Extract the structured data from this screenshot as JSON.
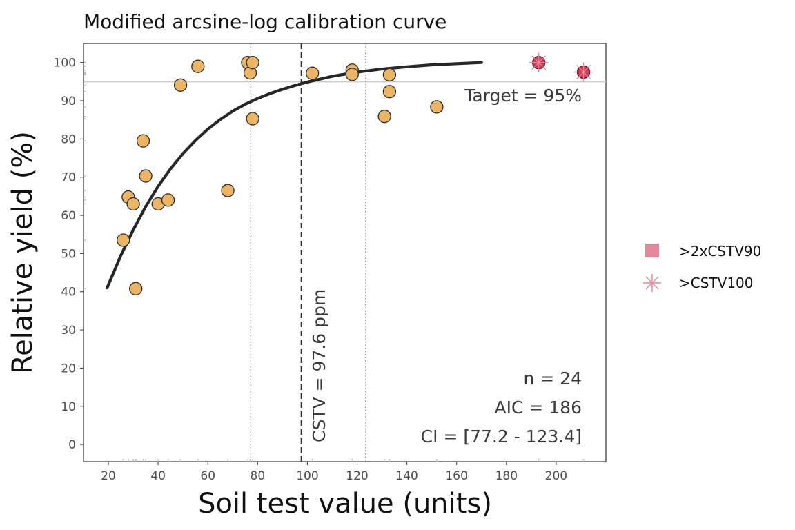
{
  "chart_data": {
    "type": "scatter",
    "title": "Modified arcsine-log calibration curve",
    "xlabel": "Soil test value (units)",
    "ylabel": "Relative yield (%)",
    "xlim": [
      10,
      220
    ],
    "ylim": [
      -4.5,
      105
    ],
    "x_ticks": [
      20,
      40,
      60,
      80,
      100,
      120,
      140,
      160,
      180,
      200
    ],
    "y_ticks": [
      0,
      10,
      20,
      30,
      40,
      50,
      60,
      70,
      80,
      90,
      100
    ],
    "grid": false,
    "target": {
      "value": 95,
      "label": "Target = 95%"
    },
    "cstv": {
      "value": 97.6,
      "label": "CSTV = 97.6 ppm"
    },
    "ci": {
      "lower": 77.2,
      "upper": 123.4
    },
    "stats": [
      "n = 24",
      "AIC = 186",
      "CI = [77.2 - 123.4]"
    ],
    "points": [
      {
        "x": 26,
        "y": 53.5
      },
      {
        "x": 28,
        "y": 64.8
      },
      {
        "x": 30,
        "y": 63
      },
      {
        "x": 31,
        "y": 40.8
      },
      {
        "x": 34,
        "y": 79.5
      },
      {
        "x": 35,
        "y": 70.3
      },
      {
        "x": 40,
        "y": 63
      },
      {
        "x": 44,
        "y": 64
      },
      {
        "x": 49,
        "y": 94.1
      },
      {
        "x": 56,
        "y": 99
      },
      {
        "x": 68,
        "y": 66.5
      },
      {
        "x": 76,
        "y": 100
      },
      {
        "x": 77,
        "y": 97.3
      },
      {
        "x": 78,
        "y": 100
      },
      {
        "x": 78,
        "y": 85.3
      },
      {
        "x": 102,
        "y": 97.2
      },
      {
        "x": 118,
        "y": 98
      },
      {
        "x": 118,
        "y": 96.9
      },
      {
        "x": 131,
        "y": 85.9
      },
      {
        "x": 133,
        "y": 92.4
      },
      {
        "x": 133,
        "y": 96.8
      },
      {
        "x": 152,
        "y": 88.4
      }
    ],
    "outliers": [
      {
        "x": 193,
        "y": 100
      },
      {
        "x": 211,
        "y": 97.5
      }
    ],
    "curve": {
      "x": [
        19.5,
        25,
        30,
        35,
        40,
        45,
        50,
        55,
        60,
        65,
        70,
        75,
        80,
        85,
        90,
        95,
        100,
        110,
        120,
        130,
        140,
        150,
        160,
        170
      ],
      "y": [
        41,
        49.5,
        56.2,
        62.3,
        67.6,
        72.2,
        76.2,
        79.6,
        82.6,
        85.1,
        87.3,
        89.1,
        90.6,
        91.9,
        93,
        94,
        94.9,
        96.4,
        97.5,
        98.3,
        98.9,
        99.4,
        99.7,
        100
      ]
    },
    "legend": {
      "placement": "right",
      "items": [
        {
          "label": ">2xCSTV90",
          "shape": "square"
        },
        {
          "label": ">CSTV100",
          "shape": "asterisk"
        }
      ]
    },
    "colors": {
      "point_fill": "#ebb466",
      "outlier_fill": "#d7344f",
      "legend_marker": "#e3879a",
      "curve": "#262626",
      "target_line": "#cccccc"
    }
  }
}
